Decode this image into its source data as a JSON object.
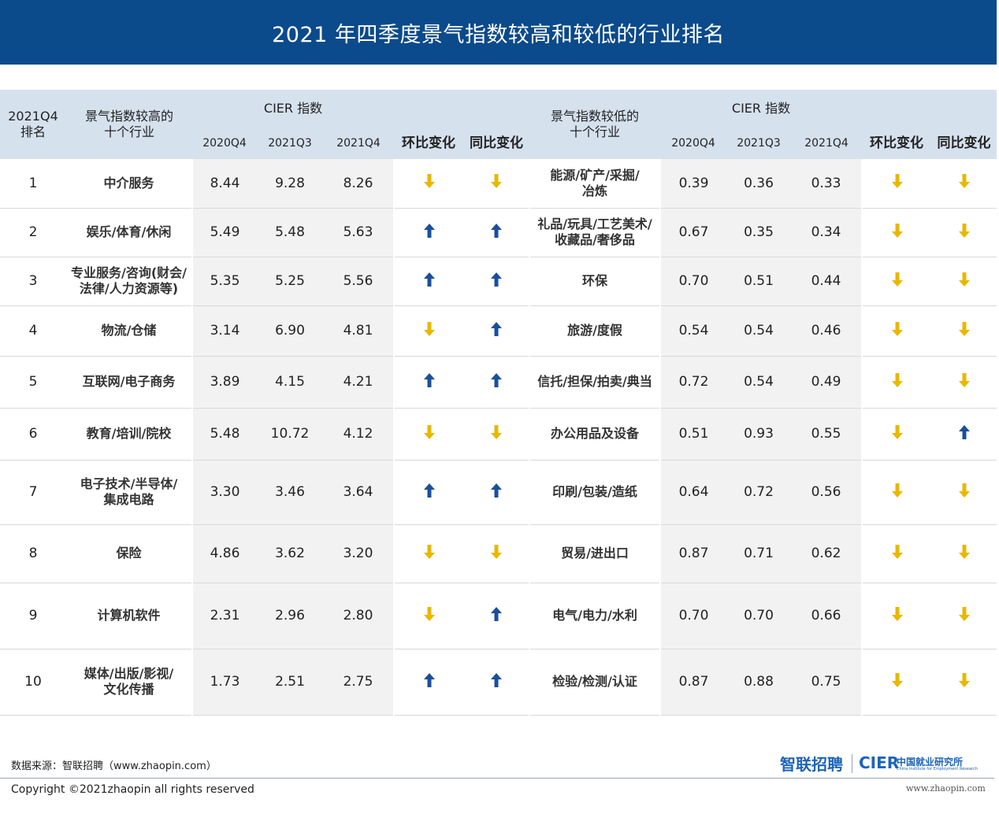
{
  "title": "2021 年四季度景气指数较高和较低的行业排名",
  "header": {
    "rank": "2021Q4\n排名",
    "high_industries": "景气指数较高的\n十个行业",
    "low_industries": "景气指数较低的\n十个行业",
    "cier_index": "CIER  指数",
    "q_2020q4": "2020Q4",
    "q_2021q3": "2021Q3",
    "q_2021q4": "2021Q4",
    "qoq": "环比变化",
    "yoy": "同比变化"
  },
  "colors": {
    "up": "#1a4f9a",
    "down": "#e8b800",
    "header_bg": "#d6e1ee",
    "title_bg": "#0b4a8b"
  },
  "rows": [
    {
      "rank": "1",
      "high": "中介服务",
      "h2020q4": "8.44",
      "h2021q3": "9.28",
      "h2021q4": "8.26",
      "h_qoq": "down",
      "h_yoy": "down",
      "low": "能源/矿产/采掘/\n冶炼",
      "l2020q4": "0.39",
      "l2021q3": "0.36",
      "l2021q4": "0.33",
      "l_qoq": "down",
      "l_yoy": "down"
    },
    {
      "rank": "2",
      "high": "娱乐/体育/休闲",
      "h2020q4": "5.49",
      "h2021q3": "5.48",
      "h2021q4": "5.63",
      "h_qoq": "up",
      "h_yoy": "up",
      "low": "礼品/玩具/工艺美术/\n收藏品/奢侈品",
      "l2020q4": "0.67",
      "l2021q3": "0.35",
      "l2021q4": "0.34",
      "l_qoq": "down",
      "l_yoy": "down"
    },
    {
      "rank": "3",
      "high": "专业服务/咨询(财会/\n法律/人力资源等)",
      "h2020q4": "5.35",
      "h2021q3": "5.25",
      "h2021q4": "5.56",
      "h_qoq": "up",
      "h_yoy": "up",
      "low": "环保",
      "l2020q4": "0.70",
      "l2021q3": "0.51",
      "l2021q4": "0.44",
      "l_qoq": "down",
      "l_yoy": "down"
    },
    {
      "rank": "4",
      "high": "物流/仓储",
      "h2020q4": "3.14",
      "h2021q3": "6.90",
      "h2021q4": "4.81",
      "h_qoq": "down",
      "h_yoy": "up",
      "low": "旅游/度假",
      "l2020q4": "0.54",
      "l2021q3": "0.54",
      "l2021q4": "0.46",
      "l_qoq": "down",
      "l_yoy": "down"
    },
    {
      "rank": "5",
      "high": "互联网/电子商务",
      "h2020q4": "3.89",
      "h2021q3": "4.15",
      "h2021q4": "4.21",
      "h_qoq": "up",
      "h_yoy": "up",
      "low": "信托/担保/拍卖/典当",
      "l2020q4": "0.72",
      "l2021q3": "0.54",
      "l2021q4": "0.49",
      "l_qoq": "down",
      "l_yoy": "down"
    },
    {
      "rank": "6",
      "high": "教育/培训/院校",
      "h2020q4": "5.48",
      "h2021q3": "10.72",
      "h2021q4": "4.12",
      "h_qoq": "down",
      "h_yoy": "down",
      "low": "办公用品及设备",
      "l2020q4": "0.51",
      "l2021q3": "0.93",
      "l2021q4": "0.55",
      "l_qoq": "down",
      "l_yoy": "up"
    },
    {
      "rank": "7",
      "high": "电子技术/半导体/\n集成电路",
      "h2020q4": "3.30",
      "h2021q3": "3.46",
      "h2021q4": "3.64",
      "h_qoq": "up",
      "h_yoy": "up",
      "low": "印刷/包装/造纸",
      "l2020q4": "0.64",
      "l2021q3": "0.72",
      "l2021q4": "0.56",
      "l_qoq": "down",
      "l_yoy": "down"
    },
    {
      "rank": "8",
      "high": "保险",
      "h2020q4": "4.86",
      "h2021q3": "3.62",
      "h2021q4": "3.20",
      "h_qoq": "down",
      "h_yoy": "down",
      "low": "贸易/进出口",
      "l2020q4": "0.87",
      "l2021q3": "0.71",
      "l2021q4": "0.62",
      "l_qoq": "down",
      "l_yoy": "down"
    },
    {
      "rank": "9",
      "high": "计算机软件",
      "h2020q4": "2.31",
      "h2021q3": "2.96",
      "h2021q4": "2.80",
      "h_qoq": "down",
      "h_yoy": "up",
      "low": "电气/电力/水利",
      "l2020q4": "0.70",
      "l2021q3": "0.70",
      "l2021q4": "0.66",
      "l_qoq": "down",
      "l_yoy": "down"
    },
    {
      "rank": "10",
      "high": "媒体/出版/影视/\n文化传播",
      "h2020q4": "1.73",
      "h2021q3": "2.51",
      "h2021q4": "2.75",
      "h_qoq": "up",
      "h_yoy": "up",
      "low": "检验/检测/认证",
      "l2020q4": "0.87",
      "l2021q3": "0.88",
      "l2021q4": "0.75",
      "l_qoq": "down",
      "l_yoy": "down"
    }
  ],
  "footer": {
    "source": "数据来源：智联招聘（www.zhaopin.com）",
    "copyright": "Copyright ©2021zhaopin all rights reserved",
    "logo_zhilian": "智联招聘",
    "logo_cier": "CIER",
    "logo_cier_cn": "中国就业研究所",
    "logo_cier_en": "China Institute for Employment Research",
    "website": "www.zhaopin.com"
  }
}
